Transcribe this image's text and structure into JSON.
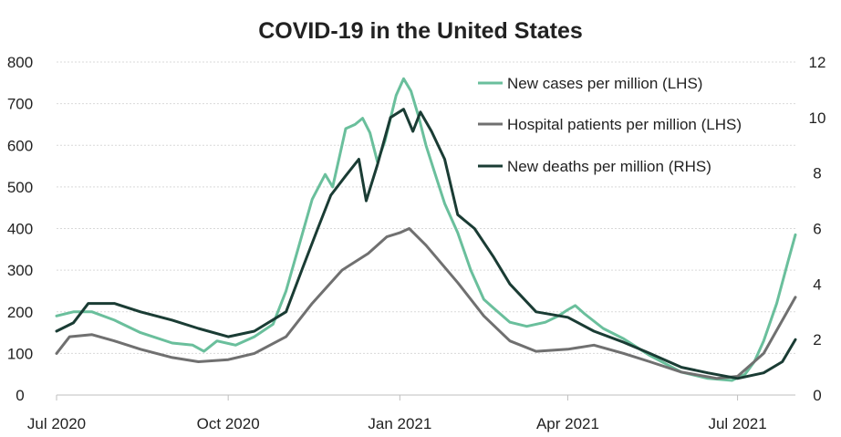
{
  "chart_data": {
    "type": "line",
    "title": "COVID-19 in the United States",
    "x_ticks": [
      "Jul 2020",
      "Oct 2020",
      "Jan 2021",
      "Apr 2021",
      "Jul 2021"
    ],
    "x_range": [
      "2020-07-01",
      "2021-08-01"
    ],
    "y_left": {
      "range": [
        0,
        800
      ],
      "ticks": [
        0,
        100,
        200,
        300,
        400,
        500,
        600,
        700,
        800
      ]
    },
    "y_right": {
      "range": [
        0,
        12
      ],
      "ticks": [
        0,
        2,
        4,
        6,
        8,
        10,
        12
      ]
    },
    "grid": true,
    "legend_position": "top-right",
    "series": [
      {
        "name": "New cases per million (LHS)",
        "axis": "left",
        "color": "#6abf9c",
        "points": [
          [
            "2020-07-01",
            190
          ],
          [
            "2020-07-10",
            200
          ],
          [
            "2020-07-20",
            200
          ],
          [
            "2020-08-01",
            180
          ],
          [
            "2020-08-15",
            150
          ],
          [
            "2020-09-01",
            125
          ],
          [
            "2020-09-12",
            120
          ],
          [
            "2020-09-18",
            105
          ],
          [
            "2020-09-25",
            130
          ],
          [
            "2020-10-05",
            120
          ],
          [
            "2020-10-15",
            140
          ],
          [
            "2020-10-25",
            170
          ],
          [
            "2020-11-01",
            250
          ],
          [
            "2020-11-08",
            360
          ],
          [
            "2020-11-15",
            470
          ],
          [
            "2020-11-22",
            530
          ],
          [
            "2020-11-26",
            500
          ],
          [
            "2020-11-30",
            580
          ],
          [
            "2020-12-03",
            640
          ],
          [
            "2020-12-08",
            650
          ],
          [
            "2020-12-12",
            665
          ],
          [
            "2020-12-16",
            630
          ],
          [
            "2020-12-20",
            560
          ],
          [
            "2020-12-24",
            610
          ],
          [
            "2020-12-30",
            720
          ],
          [
            "2021-01-03",
            760
          ],
          [
            "2021-01-07",
            730
          ],
          [
            "2021-01-11",
            670
          ],
          [
            "2021-01-15",
            600
          ],
          [
            "2021-01-20",
            530
          ],
          [
            "2021-01-25",
            460
          ],
          [
            "2021-02-01",
            390
          ],
          [
            "2021-02-08",
            300
          ],
          [
            "2021-02-15",
            230
          ],
          [
            "2021-02-20",
            210
          ],
          [
            "2021-03-01",
            175
          ],
          [
            "2021-03-10",
            165
          ],
          [
            "2021-03-20",
            175
          ],
          [
            "2021-03-27",
            190
          ],
          [
            "2021-04-01",
            205
          ],
          [
            "2021-04-05",
            215
          ],
          [
            "2021-04-10",
            195
          ],
          [
            "2021-04-20",
            160
          ],
          [
            "2021-05-01",
            135
          ],
          [
            "2021-05-15",
            95
          ],
          [
            "2021-06-01",
            55
          ],
          [
            "2021-06-15",
            40
          ],
          [
            "2021-06-28",
            35
          ],
          [
            "2021-07-05",
            50
          ],
          [
            "2021-07-10",
            80
          ],
          [
            "2021-07-15",
            130
          ],
          [
            "2021-07-22",
            220
          ],
          [
            "2021-07-28",
            320
          ],
          [
            "2021-08-01",
            385
          ]
        ]
      },
      {
        "name": "Hospital patients per million (LHS)",
        "axis": "left",
        "color": "#707070",
        "points": [
          [
            "2020-07-01",
            100
          ],
          [
            "2020-07-08",
            140
          ],
          [
            "2020-07-20",
            145
          ],
          [
            "2020-08-01",
            130
          ],
          [
            "2020-08-15",
            110
          ],
          [
            "2020-09-01",
            90
          ],
          [
            "2020-09-15",
            80
          ],
          [
            "2020-10-01",
            85
          ],
          [
            "2020-10-15",
            100
          ],
          [
            "2020-11-01",
            140
          ],
          [
            "2020-11-15",
            220
          ],
          [
            "2020-12-01",
            300
          ],
          [
            "2020-12-15",
            340
          ],
          [
            "2020-12-25",
            380
          ],
          [
            "2021-01-01",
            390
          ],
          [
            "2021-01-06",
            400
          ],
          [
            "2021-01-15",
            360
          ],
          [
            "2021-02-01",
            270
          ],
          [
            "2021-02-15",
            190
          ],
          [
            "2021-03-01",
            130
          ],
          [
            "2021-03-15",
            105
          ],
          [
            "2021-04-01",
            110
          ],
          [
            "2021-04-15",
            120
          ],
          [
            "2021-05-01",
            100
          ],
          [
            "2021-05-15",
            80
          ],
          [
            "2021-06-01",
            55
          ],
          [
            "2021-06-20",
            40
          ],
          [
            "2021-07-01",
            45
          ],
          [
            "2021-07-15",
            100
          ],
          [
            "2021-08-01",
            235
          ]
        ]
      },
      {
        "name": "New deaths per million (RHS)",
        "axis": "right",
        "color": "#1a3c34",
        "points": [
          [
            "2020-07-01",
            2.3
          ],
          [
            "2020-07-10",
            2.6
          ],
          [
            "2020-07-18",
            3.3
          ],
          [
            "2020-08-01",
            3.3
          ],
          [
            "2020-08-15",
            3.0
          ],
          [
            "2020-09-01",
            2.7
          ],
          [
            "2020-09-15",
            2.4
          ],
          [
            "2020-10-01",
            2.1
          ],
          [
            "2020-10-15",
            2.3
          ],
          [
            "2020-11-01",
            3.0
          ],
          [
            "2020-11-10",
            4.6
          ],
          [
            "2020-11-18",
            6.0
          ],
          [
            "2020-11-25",
            7.2
          ],
          [
            "2020-12-03",
            7.9
          ],
          [
            "2020-12-10",
            8.5
          ],
          [
            "2020-12-14",
            7.0
          ],
          [
            "2020-12-20",
            8.3
          ],
          [
            "2020-12-27",
            10.0
          ],
          [
            "2021-01-03",
            10.3
          ],
          [
            "2021-01-08",
            9.5
          ],
          [
            "2021-01-12",
            10.2
          ],
          [
            "2021-01-18",
            9.5
          ],
          [
            "2021-01-25",
            8.5
          ],
          [
            "2021-02-01",
            6.5
          ],
          [
            "2021-02-10",
            6.0
          ],
          [
            "2021-02-20",
            5.0
          ],
          [
            "2021-03-01",
            4.0
          ],
          [
            "2021-03-15",
            3.0
          ],
          [
            "2021-04-01",
            2.8
          ],
          [
            "2021-04-15",
            2.3
          ],
          [
            "2021-05-01",
            1.9
          ],
          [
            "2021-05-15",
            1.5
          ],
          [
            "2021-06-01",
            1.0
          ],
          [
            "2021-06-15",
            0.8
          ],
          [
            "2021-07-01",
            0.6
          ],
          [
            "2021-07-15",
            0.8
          ],
          [
            "2021-07-25",
            1.2
          ],
          [
            "2021-08-01",
            2.0
          ]
        ]
      }
    ]
  }
}
